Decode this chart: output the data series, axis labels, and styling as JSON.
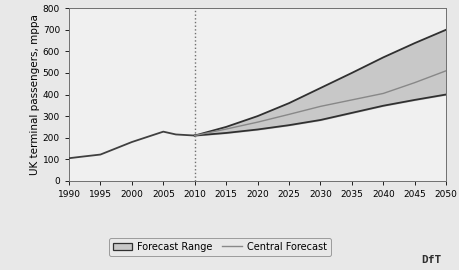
{
  "historical_years": [
    1990,
    1992,
    1995,
    2000,
    2005,
    2007,
    2010
  ],
  "historical_values": [
    105,
    112,
    122,
    180,
    228,
    215,
    210
  ],
  "forecast_years": [
    2010,
    2015,
    2020,
    2025,
    2030,
    2035,
    2040,
    2045,
    2050
  ],
  "forecast_central": [
    210,
    240,
    272,
    308,
    345,
    375,
    405,
    455,
    510
  ],
  "forecast_upper": [
    210,
    250,
    300,
    360,
    430,
    500,
    572,
    638,
    700
  ],
  "forecast_lower": [
    210,
    222,
    238,
    258,
    282,
    315,
    348,
    375,
    400
  ],
  "xlim": [
    1990,
    2050
  ],
  "ylim": [
    0,
    800
  ],
  "yticks": [
    0,
    100,
    200,
    300,
    400,
    500,
    600,
    700,
    800
  ],
  "xticks": [
    1990,
    1995,
    2000,
    2005,
    2010,
    2015,
    2020,
    2025,
    2030,
    2035,
    2040,
    2045,
    2050
  ],
  "ylabel": "UK terminal passengers, mppa",
  "vline_x": 2010,
  "hist_line_color": "#404040",
  "central_line_color": "#888888",
  "range_fill_color": "#c8c8c8",
  "range_edge_color": "#303030",
  "plot_bg_color": "#f0f0f0",
  "fig_bg_color": "#e8e8e8",
  "legend_forecast_range_label": "Forecast Range",
  "legend_central_label": "Central Forecast",
  "dft_label": "DfT",
  "axis_fontsize": 7.5,
  "tick_fontsize": 6.5,
  "legend_fontsize": 7.0
}
